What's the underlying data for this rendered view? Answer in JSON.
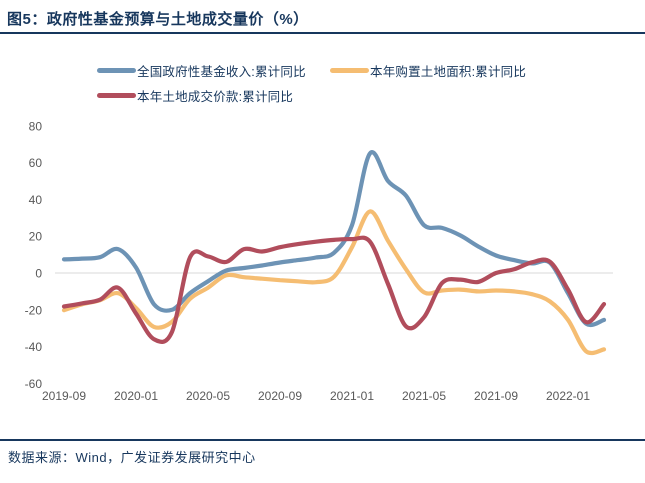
{
  "header": {
    "title": "图5：政府性基金预算与土地成交量价（%）"
  },
  "source": {
    "text": "数据来源：Wind，广发证券发展研究中心"
  },
  "colors": {
    "navy": "#17375D",
    "axis_label": "#595959",
    "gridline": "#D9D9D9",
    "background": "#FFFFFF"
  },
  "chart_data": {
    "type": "line",
    "title": "政府性基金预算与土地成交量价（%）",
    "xlabel": "",
    "ylabel": "",
    "ylim": [
      -60,
      80
    ],
    "y_tick_step": 20,
    "x_tick_every": 4,
    "grid": "zero-line-only",
    "legend_position": "top-left",
    "x": [
      "2019-09",
      "2019-10",
      "2019-11",
      "2019-12",
      "2020-01",
      "2020-02",
      "2020-03",
      "2020-04",
      "2020-05",
      "2020-06",
      "2020-07",
      "2020-08",
      "2020-09",
      "2020-10",
      "2020-11",
      "2020-12",
      "2021-01",
      "2021-02",
      "2021-03",
      "2021-04",
      "2021-05",
      "2021-06",
      "2021-07",
      "2021-08",
      "2021-09",
      "2021-10",
      "2021-11",
      "2021-12",
      "2022-01",
      "2022-02",
      "2022-03"
    ],
    "x_tick_labels": [
      "2019-09",
      "2020-01",
      "2020-05",
      "2020-09",
      "2021-01",
      "2021-05",
      "2021-09",
      "2022-01"
    ],
    "y_tick_labels": [
      "80",
      "60",
      "40",
      "20",
      "0",
      "-20",
      "-40",
      "-60"
    ],
    "series": [
      {
        "name": "全国政府性基金收入:累计同比",
        "color": "#6D93B5",
        "values": [
          7.4,
          7.8,
          8.6,
          13,
          3,
          -17,
          -20,
          -11,
          -4.5,
          1.3,
          2.7,
          4.1,
          5.7,
          7,
          8.4,
          11,
          26,
          65,
          50,
          42,
          26,
          24.5,
          20.5,
          14.5,
          9.5,
          7,
          5.2,
          5.6,
          -11,
          -27.5,
          -25.5
        ]
      },
      {
        "name": "本年购置土地面积:累计同比",
        "color": "#F5BD72",
        "values": [
          -20.2,
          -17,
          -14.8,
          -11,
          -19,
          -29.3,
          -26.5,
          -14,
          -8,
          -1.3,
          -2.3,
          -3.1,
          -3.9,
          -4.5,
          -5,
          -2,
          14,
          33.5,
          17.5,
          2,
          -10.5,
          -9.5,
          -9,
          -10,
          -9.5,
          -10,
          -11.5,
          -15.5,
          -25.5,
          -42.5,
          -41.5
        ]
      },
      {
        "name": "本年土地成交价款:累计同比",
        "color": "#B14D5C",
        "values": [
          -18.2,
          -16.5,
          -14.5,
          -8,
          -22,
          -36,
          -32,
          8.5,
          9,
          6,
          13,
          11.7,
          14,
          15.7,
          17,
          18,
          18.4,
          17,
          -6,
          -29,
          -24,
          -5.5,
          -3.6,
          -4.9,
          0,
          2,
          5.8,
          6.1,
          -9,
          -26.7,
          -16.9
        ]
      }
    ]
  }
}
